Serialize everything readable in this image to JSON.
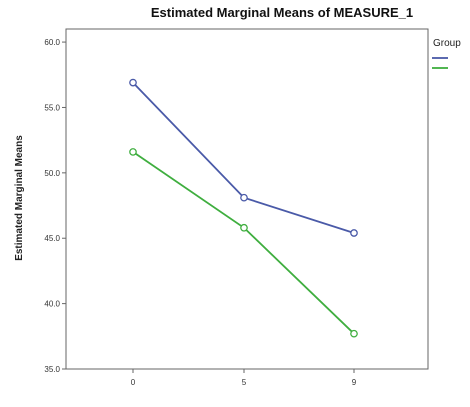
{
  "chart_data": {
    "type": "line",
    "title": "Estimated Marginal Means of MEASURE_1",
    "xlabel": "",
    "ylabel": "Estimated Marginal Means",
    "categories": [
      "0",
      "5",
      "9"
    ],
    "ylim": [
      35,
      61
    ],
    "y_ticks": [
      "60.0",
      "55.0",
      "50.0",
      "45.0",
      "40.0",
      "35.0"
    ],
    "legend": {
      "title": "Group",
      "placement": "right"
    },
    "series": [
      {
        "name": "",
        "color": "#4a5aa8",
        "values": [
          56.9,
          48.1,
          45.4
        ]
      },
      {
        "name": "",
        "color": "#3fae3f",
        "values": [
          51.6,
          45.8,
          37.7
        ]
      }
    ],
    "grid": false
  }
}
